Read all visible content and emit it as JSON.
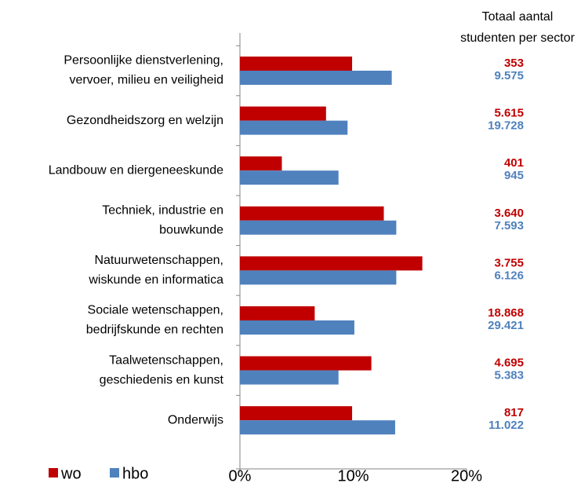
{
  "chart_data": {
    "type": "hbar",
    "annotation": [
      "Totaal aantal",
      "studenten per sector"
    ],
    "categories": [
      [
        "Persoonlijke dienstverlening,",
        "vervoer, milieu en veiligheid"
      ],
      [
        "Gezondheidszorg en welzijn"
      ],
      [
        "Landbouw en diergeneeskunde"
      ],
      [
        "Techniek, industrie en",
        "bouwkunde"
      ],
      [
        "Natuurwetenschappen,",
        "wiskunde en informatica"
      ],
      [
        "Sociale wetenschappen,",
        "bedrijfskunde en rechten"
      ],
      [
        "Taalwetenschappen,",
        "geschiedenis en kunst"
      ],
      [
        "Onderwijs"
      ]
    ],
    "series": [
      {
        "name": "wo",
        "color": "#c00000",
        "values": [
          9.9,
          7.6,
          3.7,
          12.7,
          16.1,
          6.6,
          11.6,
          9.9
        ],
        "totals": [
          353,
          5615,
          401,
          3640,
          3755,
          18868,
          4695,
          817
        ],
        "totals_labels": [
          "353",
          "5.615",
          "401",
          "3.640",
          "3.755",
          "18.868",
          "4.695",
          "817"
        ]
      },
      {
        "name": "hbo",
        "color": "#4f81bd",
        "values": [
          13.4,
          9.5,
          8.7,
          13.8,
          13.8,
          10.1,
          8.7,
          13.7
        ],
        "totals": [
          9575,
          19728,
          945,
          7593,
          6126,
          29421,
          5383,
          11022
        ],
        "totals_labels": [
          "9.575",
          "19.728",
          "945",
          "7.593",
          "6.126",
          "29.421",
          "5.383",
          "11.022"
        ]
      }
    ],
    "xlim": [
      0,
      20
    ],
    "xticks": [
      {
        "value": 0,
        "label": "0%"
      },
      {
        "value": 10,
        "label": "10%"
      },
      {
        "value": 20,
        "label": "20%"
      }
    ],
    "legend": "bottom-left"
  }
}
